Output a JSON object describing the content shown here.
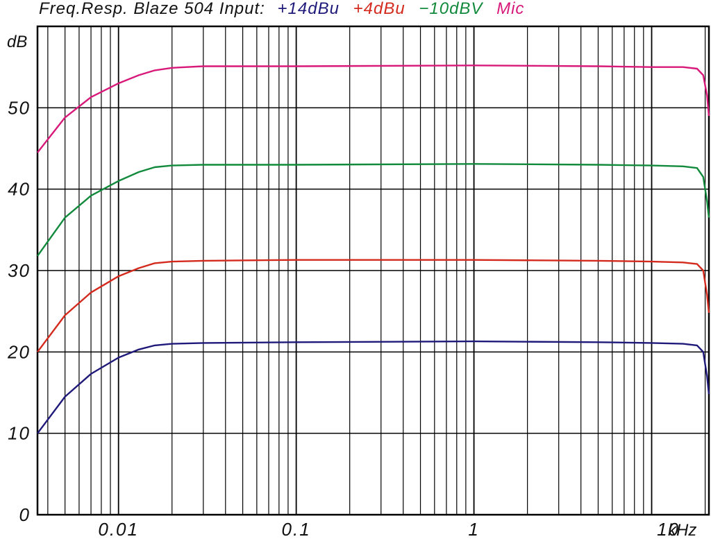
{
  "title": {
    "prefix": "Freq.Resp. Blaze 504 Input:",
    "series_labels": [
      {
        "label": "+14dBu",
        "color": "#1f1a7a"
      },
      {
        "label": "+4dBu",
        "color": "#d42a1e"
      },
      {
        "label": "−10dBV",
        "color": "#118a3c"
      },
      {
        "label": "Mic",
        "color": "#d8197a"
      }
    ]
  },
  "colors": {
    "grid": "#000000",
    "background": "#ffffff",
    "text": "#111111"
  },
  "chart_data": {
    "type": "line",
    "title": "Freq.Resp. Blaze 504 Input: +14dBu +4dBu −10dBV Mic",
    "xlabel": "kHz",
    "ylabel": "dB",
    "x_scale": "log",
    "xlim": [
      0.0035,
      21
    ],
    "ylim": [
      0,
      60
    ],
    "grid": true,
    "y_ticks": [
      0,
      10,
      20,
      30,
      40,
      50
    ],
    "y_tick_labels": [
      "0",
      "10",
      "20",
      "30",
      "40",
      "50"
    ],
    "y_unit_label": "dB",
    "x_ticks": [
      0.01,
      0.1,
      1,
      10
    ],
    "x_tick_labels": [
      "0.01",
      "0.1",
      "1",
      "10"
    ],
    "x_unit_label": "kHz",
    "series": [
      {
        "name": "+14dBu",
        "color": "#1f1a7a",
        "points": [
          [
            0.0035,
            10.0
          ],
          [
            0.005,
            14.5
          ],
          [
            0.007,
            17.3
          ],
          [
            0.01,
            19.3
          ],
          [
            0.013,
            20.3
          ],
          [
            0.016,
            20.8
          ],
          [
            0.02,
            21.0
          ],
          [
            0.03,
            21.1
          ],
          [
            0.1,
            21.2
          ],
          [
            1,
            21.3
          ],
          [
            5,
            21.2
          ],
          [
            10,
            21.1
          ],
          [
            15,
            21.0
          ],
          [
            18,
            20.8
          ],
          [
            19.5,
            20.0
          ],
          [
            20.5,
            17.0
          ],
          [
            21,
            14.8
          ]
        ]
      },
      {
        "name": "+4dBu",
        "color": "#d42a1e",
        "points": [
          [
            0.0035,
            20.0
          ],
          [
            0.005,
            24.5
          ],
          [
            0.007,
            27.3
          ],
          [
            0.01,
            29.3
          ],
          [
            0.013,
            30.3
          ],
          [
            0.016,
            30.9
          ],
          [
            0.02,
            31.1
          ],
          [
            0.03,
            31.2
          ],
          [
            0.1,
            31.3
          ],
          [
            1,
            31.3
          ],
          [
            5,
            31.2
          ],
          [
            10,
            31.1
          ],
          [
            15,
            31.0
          ],
          [
            18,
            30.8
          ],
          [
            19.5,
            30.0
          ],
          [
            20.5,
            27.0
          ],
          [
            21,
            24.8
          ]
        ]
      },
      {
        "name": "−10dBV",
        "color": "#118a3c",
        "points": [
          [
            0.0035,
            31.8
          ],
          [
            0.005,
            36.5
          ],
          [
            0.007,
            39.2
          ],
          [
            0.01,
            41.0
          ],
          [
            0.013,
            42.1
          ],
          [
            0.016,
            42.7
          ],
          [
            0.02,
            42.9
          ],
          [
            0.03,
            43.0
          ],
          [
            0.1,
            43.0
          ],
          [
            1,
            43.1
          ],
          [
            5,
            43.0
          ],
          [
            10,
            42.9
          ],
          [
            15,
            42.8
          ],
          [
            18,
            42.6
          ],
          [
            19.5,
            41.5
          ],
          [
            20.5,
            38.5
          ],
          [
            21,
            36.5
          ]
        ]
      },
      {
        "name": "Mic",
        "color": "#d8197a",
        "points": [
          [
            0.0035,
            44.5
          ],
          [
            0.005,
            48.8
          ],
          [
            0.007,
            51.3
          ],
          [
            0.01,
            53.0
          ],
          [
            0.013,
            54.0
          ],
          [
            0.016,
            54.6
          ],
          [
            0.02,
            54.9
          ],
          [
            0.03,
            55.1
          ],
          [
            0.1,
            55.1
          ],
          [
            1,
            55.2
          ],
          [
            5,
            55.1
          ],
          [
            10,
            55.0
          ],
          [
            15,
            55.0
          ],
          [
            18,
            54.8
          ],
          [
            19.5,
            54.0
          ],
          [
            20.5,
            51.5
          ],
          [
            21,
            49.0
          ]
        ]
      }
    ]
  }
}
